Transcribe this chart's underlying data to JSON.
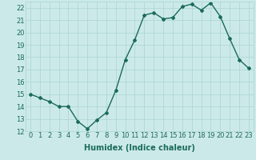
{
  "x": [
    0,
    1,
    2,
    3,
    4,
    5,
    6,
    7,
    8,
    9,
    10,
    11,
    12,
    13,
    14,
    15,
    16,
    17,
    18,
    19,
    20,
    21,
    22,
    23
  ],
  "y": [
    15.0,
    14.7,
    14.4,
    14.0,
    14.0,
    12.8,
    12.2,
    12.9,
    13.5,
    15.3,
    17.8,
    19.4,
    21.4,
    21.6,
    21.1,
    21.2,
    22.1,
    22.3,
    21.8,
    22.4,
    21.3,
    19.5,
    17.8,
    17.1
  ],
  "line_color": "#1a6b5a",
  "marker": "D",
  "markersize": 2,
  "linewidth": 1.0,
  "xlabel": "Humidex (Indice chaleur)",
  "xlim": [
    -0.5,
    23.5
  ],
  "ylim": [
    12,
    22.5
  ],
  "yticks": [
    12,
    13,
    14,
    15,
    16,
    17,
    18,
    19,
    20,
    21,
    22
  ],
  "xticks": [
    0,
    1,
    2,
    3,
    4,
    5,
    6,
    7,
    8,
    9,
    10,
    11,
    12,
    13,
    14,
    15,
    16,
    17,
    18,
    19,
    20,
    21,
    22,
    23
  ],
  "bg_color": "#cce9e9",
  "grid_color": "#aad4d4",
  "xlabel_fontsize": 7,
  "tick_fontsize": 6
}
